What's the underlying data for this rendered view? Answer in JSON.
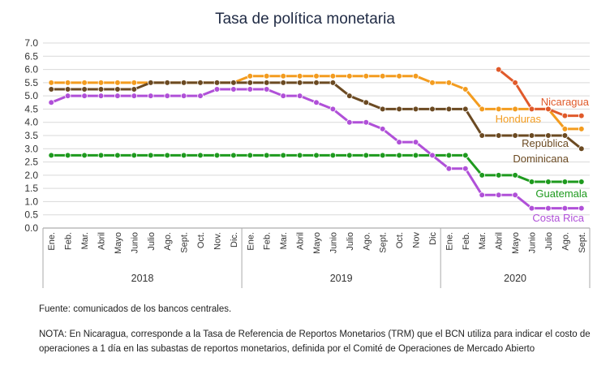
{
  "chart_data": {
    "type": "line",
    "title": "Tasa de política monetaria",
    "ylim": [
      0,
      7
    ],
    "yticks": [
      "0.0",
      "0.5",
      "1.0",
      "1.5",
      "2.0",
      "2.5",
      "3.0",
      "3.5",
      "4.0",
      "4.5",
      "5.0",
      "5.5",
      "6.0",
      "6.5",
      "7.0"
    ],
    "grid": "horizontal",
    "categories": [
      "Ene.",
      "Feb.",
      "Mar.",
      "Abril",
      "Mayo",
      "Junio",
      "Julio",
      "Ago.",
      "Sept.",
      "Oct.",
      "Nov.",
      "Dic.",
      "Ene.",
      "Feb.",
      "Mar.",
      "Abril",
      "Mayo",
      "Junio",
      "Julio",
      "Ago.",
      "Sept.",
      "Oct.",
      "Nov",
      "Dic",
      "Ene.",
      "Feb.",
      "Mar.",
      "Abril",
      "Mayo",
      "Junio",
      "Julio",
      "Ago.",
      "Sept."
    ],
    "years": [
      {
        "label": "2018",
        "start": 0,
        "end": 11
      },
      {
        "label": "2019",
        "start": 12,
        "end": 23
      },
      {
        "label": "2020",
        "start": 24,
        "end": 32
      }
    ],
    "series": [
      {
        "name": "Honduras",
        "color": "#f39c1f",
        "values": [
          5.5,
          5.5,
          5.5,
          5.5,
          5.5,
          5.5,
          5.5,
          5.5,
          5.5,
          5.5,
          5.5,
          5.5,
          5.75,
          5.75,
          5.75,
          5.75,
          5.75,
          5.75,
          5.75,
          5.75,
          5.75,
          5.75,
          5.75,
          5.5,
          5.5,
          5.25,
          4.5,
          4.5,
          4.5,
          4.5,
          4.5,
          3.75,
          3.75
        ]
      },
      {
        "name": "Nicaragua",
        "color": "#e05a2b",
        "values": [
          null,
          null,
          null,
          null,
          null,
          null,
          null,
          null,
          null,
          null,
          null,
          null,
          null,
          null,
          null,
          null,
          null,
          null,
          null,
          null,
          null,
          null,
          null,
          null,
          null,
          null,
          null,
          6.0,
          5.5,
          4.5,
          4.5,
          4.25,
          4.25
        ]
      },
      {
        "name": "República Dominicana",
        "label_lines": [
          "República",
          "Dominicana"
        ],
        "color": "#6b4a22",
        "values": [
          5.25,
          5.25,
          5.25,
          5.25,
          5.25,
          5.25,
          5.5,
          5.5,
          5.5,
          5.5,
          5.5,
          5.5,
          5.5,
          5.5,
          5.5,
          5.5,
          5.5,
          5.5,
          5.0,
          4.75,
          4.5,
          4.5,
          4.5,
          4.5,
          4.5,
          4.5,
          3.5,
          3.5,
          3.5,
          3.5,
          3.5,
          3.5,
          3.0
        ]
      },
      {
        "name": "Guatemala",
        "color": "#1e9a1e",
        "values": [
          2.75,
          2.75,
          2.75,
          2.75,
          2.75,
          2.75,
          2.75,
          2.75,
          2.75,
          2.75,
          2.75,
          2.75,
          2.75,
          2.75,
          2.75,
          2.75,
          2.75,
          2.75,
          2.75,
          2.75,
          2.75,
          2.75,
          2.75,
          2.75,
          2.75,
          2.75,
          2.0,
          2.0,
          2.0,
          1.75,
          1.75,
          1.75,
          1.75
        ]
      },
      {
        "name": "Costa Rica",
        "color": "#b050d8",
        "values": [
          4.75,
          5.0,
          5.0,
          5.0,
          5.0,
          5.0,
          5.0,
          5.0,
          5.0,
          5.0,
          5.25,
          5.25,
          5.25,
          5.25,
          5.0,
          5.0,
          4.75,
          4.5,
          4.0,
          4.0,
          3.75,
          3.25,
          3.25,
          2.75,
          2.25,
          2.25,
          1.25,
          1.25,
          1.25,
          0.75,
          0.75,
          0.75,
          0.75
        ]
      }
    ]
  },
  "notes": {
    "source": "Fuente: comunicados de los bancos centrales.",
    "footnote": "NOTA: En Nicaragua, corresponde a la Tasa de Referencia de Reportos Monetarios (TRM) que el BCN utiliza para indicar el costo de operaciones a 1 día en las subastas de reportos monetarios, definida por el Comité de Operaciones de Mercado Abierto"
  }
}
